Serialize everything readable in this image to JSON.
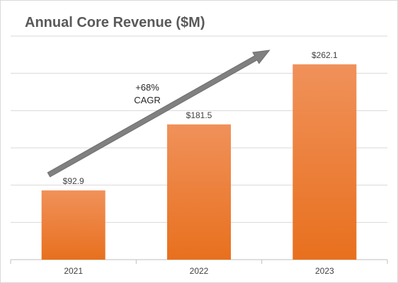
{
  "chart_data": {
    "type": "bar",
    "title": "Annual Core Revenue ($M)",
    "xlabel": "",
    "ylabel": "",
    "categories": [
      "2021",
      "2022",
      "2023"
    ],
    "values": [
      92.9,
      181.5,
      262.1
    ],
    "data_labels": [
      "$92.9",
      "$181.5",
      "$262.1"
    ],
    "ylim": [
      0,
      300
    ],
    "grid": true,
    "legend": "none",
    "bar_color_top": "#f0915a",
    "bar_color_bottom": "#e8701e",
    "annotation": {
      "line1": "+68%",
      "line2": "CAGR",
      "arrow_color": "#808080"
    }
  }
}
